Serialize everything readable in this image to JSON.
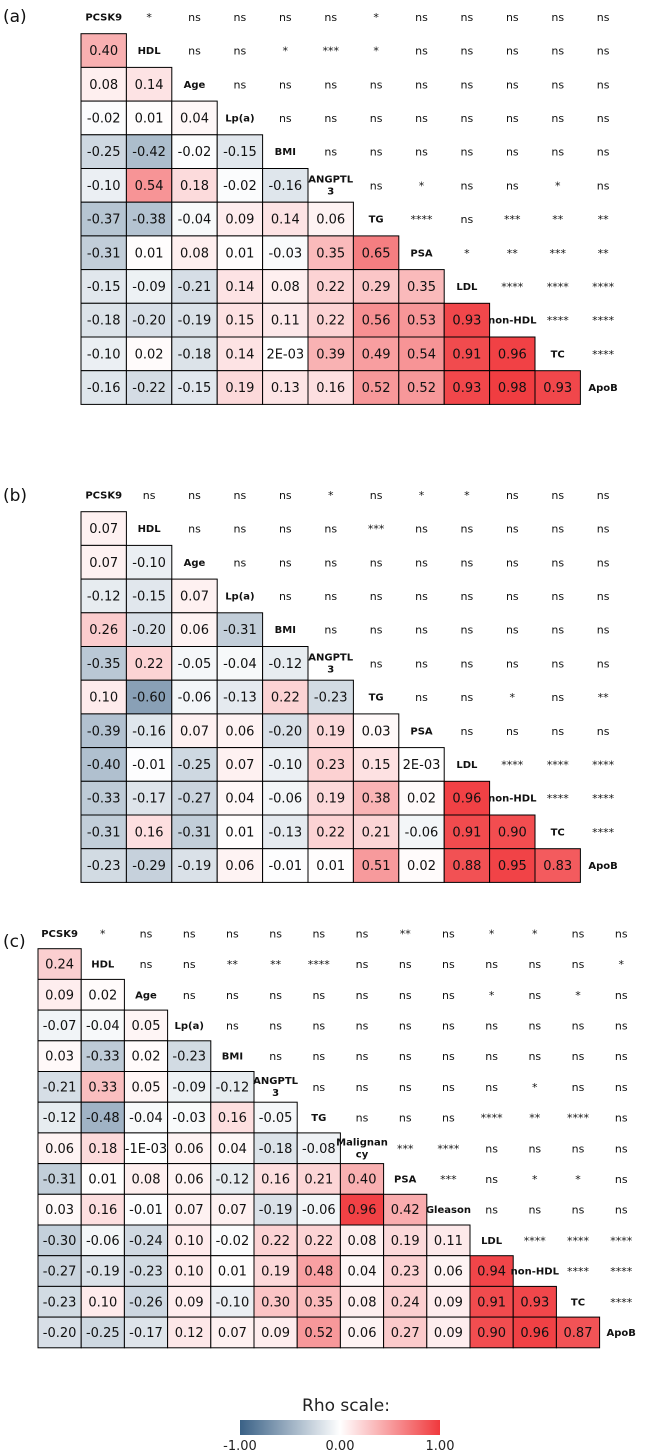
{
  "chart_data": [
    {
      "type": "heatmap",
      "panel_label": "(a)",
      "variables": [
        "PCSK9",
        "HDL",
        "Age",
        "Lp(a)",
        "BMI",
        "ANGPTL 3",
        "TG",
        "PSA",
        "LDL",
        "non-HDL",
        "TC",
        "ApoB"
      ],
      "lower_rho": [
        [],
        [
          "0.40"
        ],
        [
          "0.08",
          "0.14"
        ],
        [
          "-0.02",
          "0.01",
          "0.04"
        ],
        [
          "-0.25",
          "-0.42",
          "-0.02",
          "-0.15"
        ],
        [
          "-0.10",
          "0.54",
          "0.18",
          "-0.02",
          "-0.16"
        ],
        [
          "-0.37",
          "-0.38",
          "-0.04",
          "0.09",
          "0.14",
          "0.06"
        ],
        [
          "-0.31",
          "0.01",
          "0.08",
          "0.01",
          "-0.03",
          "0.35",
          "0.65"
        ],
        [
          "-0.15",
          "-0.09",
          "-0.21",
          "0.14",
          "0.08",
          "0.22",
          "0.29",
          "0.35"
        ],
        [
          "-0.18",
          "-0.20",
          "-0.19",
          "0.15",
          "0.11",
          "0.22",
          "0.56",
          "0.53",
          "0.93"
        ],
        [
          "-0.10",
          "0.02",
          "-0.18",
          "0.14",
          "2E-03",
          "0.39",
          "0.49",
          "0.54",
          "0.91",
          "0.96"
        ],
        [
          "-0.16",
          "-0.22",
          "-0.15",
          "0.19",
          "0.13",
          "0.16",
          "0.52",
          "0.52",
          "0.93",
          "0.98",
          "0.93"
        ]
      ],
      "upper_significance": [
        [
          "*",
          "ns",
          "ns",
          "ns",
          "ns",
          "*",
          "ns",
          "ns",
          "ns",
          "ns",
          "ns"
        ],
        [
          "ns",
          "ns",
          "*",
          "***",
          "*",
          "ns",
          "ns",
          "ns",
          "ns",
          "ns"
        ],
        [
          "ns",
          "ns",
          "ns",
          "ns",
          "ns",
          "ns",
          "ns",
          "ns",
          "ns"
        ],
        [
          "ns",
          "ns",
          "ns",
          "ns",
          "ns",
          "ns",
          "ns",
          "ns"
        ],
        [
          "ns",
          "ns",
          "ns",
          "ns",
          "ns",
          "ns",
          "ns"
        ],
        [
          "ns",
          "*",
          "ns",
          "ns",
          "*",
          "ns"
        ],
        [
          "****",
          "ns",
          "***",
          "**",
          "**"
        ],
        [
          "*",
          "**",
          "***",
          "**"
        ],
        [
          "****",
          "****",
          "****"
        ],
        [
          "****",
          "****"
        ],
        [
          "****"
        ],
        []
      ]
    },
    {
      "type": "heatmap",
      "panel_label": "(b)",
      "variables": [
        "PCSK9",
        "HDL",
        "Age",
        "Lp(a)",
        "BMI",
        "ANGPTL 3",
        "TG",
        "PSA",
        "LDL",
        "non-HDL",
        "TC",
        "ApoB"
      ],
      "lower_rho": [
        [],
        [
          "0.07"
        ],
        [
          "0.07",
          "-0.10"
        ],
        [
          "-0.12",
          "-0.15",
          "0.07"
        ],
        [
          "0.26",
          "-0.20",
          "0.06",
          "-0.31"
        ],
        [
          "-0.35",
          "0.22",
          "-0.05",
          "-0.04",
          "-0.12"
        ],
        [
          "0.10",
          "-0.60",
          "-0.06",
          "-0.13",
          "0.22",
          "-0.23"
        ],
        [
          "-0.39",
          "-0.16",
          "0.07",
          "0.06",
          "-0.20",
          "0.19",
          "0.03"
        ],
        [
          "-0.40",
          "-0.01",
          "-0.25",
          "0.07",
          "-0.10",
          "0.23",
          "0.15",
          "2E-03"
        ],
        [
          "-0.33",
          "-0.17",
          "-0.27",
          "0.04",
          "-0.06",
          "0.19",
          "0.38",
          "0.02",
          "0.96"
        ],
        [
          "-0.31",
          "0.16",
          "-0.31",
          "0.01",
          "-0.13",
          "0.22",
          "0.21",
          "-0.06",
          "0.91",
          "0.90"
        ],
        [
          "-0.23",
          "-0.29",
          "-0.19",
          "0.06",
          "-0.01",
          "0.01",
          "0.51",
          "0.02",
          "0.88",
          "0.95",
          "0.83"
        ]
      ],
      "upper_significance": [
        [
          "ns",
          "ns",
          "ns",
          "ns",
          "*",
          "ns",
          "*",
          "*",
          "ns",
          "ns",
          "ns"
        ],
        [
          "ns",
          "ns",
          "ns",
          "ns",
          "***",
          "ns",
          "ns",
          "ns",
          "ns",
          "ns"
        ],
        [
          "ns",
          "ns",
          "ns",
          "ns",
          "ns",
          "ns",
          "ns",
          "ns",
          "ns"
        ],
        [
          "ns",
          "ns",
          "ns",
          "ns",
          "ns",
          "ns",
          "ns",
          "ns"
        ],
        [
          "ns",
          "ns",
          "ns",
          "ns",
          "ns",
          "ns",
          "ns"
        ],
        [
          "ns",
          "ns",
          "ns",
          "ns",
          "ns",
          "ns"
        ],
        [
          "ns",
          "ns",
          "*",
          "ns",
          "**"
        ],
        [
          "ns",
          "ns",
          "ns",
          "ns"
        ],
        [
          "****",
          "****",
          "****"
        ],
        [
          "****",
          "****"
        ],
        [
          "****"
        ],
        []
      ]
    },
    {
      "type": "heatmap",
      "panel_label": "(c)",
      "variables": [
        "PCSK9",
        "HDL",
        "Age",
        "Lp(a)",
        "BMI",
        "ANGPTL 3",
        "TG",
        "Malignan cy",
        "PSA",
        "Gleason",
        "LDL",
        "non-HDL",
        "TC",
        "ApoB"
      ],
      "lower_rho": [
        [],
        [
          "0.24"
        ],
        [
          "0.09",
          "0.02"
        ],
        [
          "-0.07",
          "-0.04",
          "0.05"
        ],
        [
          "0.03",
          "-0.33",
          "0.02",
          "-0.23"
        ],
        [
          "-0.21",
          "0.33",
          "0.05",
          "-0.09",
          "-0.12"
        ],
        [
          "-0.12",
          "-0.48",
          "-0.04",
          "-0.03",
          "0.16",
          "-0.05"
        ],
        [
          "0.06",
          "0.18",
          "-1E-03",
          "0.06",
          "0.04",
          "-0.18",
          "-0.08"
        ],
        [
          "-0.31",
          "0.01",
          "0.08",
          "0.06",
          "-0.12",
          "0.16",
          "0.21",
          "0.40"
        ],
        [
          "0.03",
          "0.16",
          "-0.01",
          "0.07",
          "0.07",
          "-0.19",
          "-0.06",
          "0.96",
          "0.42"
        ],
        [
          "-0.30",
          "-0.06",
          "-0.24",
          "0.10",
          "-0.02",
          "0.22",
          "0.22",
          "0.08",
          "0.19",
          "0.11"
        ],
        [
          "-0.27",
          "-0.19",
          "-0.23",
          "0.10",
          "0.01",
          "0.19",
          "0.48",
          "0.04",
          "0.23",
          "0.06",
          "0.94"
        ],
        [
          "-0.23",
          "0.10",
          "-0.26",
          "0.09",
          "-0.10",
          "0.30",
          "0.35",
          "0.08",
          "0.24",
          "0.09",
          "0.91",
          "0.93"
        ],
        [
          "-0.20",
          "-0.25",
          "-0.17",
          "0.12",
          "0.07",
          "0.09",
          "0.52",
          "0.06",
          "0.27",
          "0.09",
          "0.90",
          "0.96",
          "0.87"
        ]
      ],
      "upper_significance": [
        [
          "*",
          "ns",
          "ns",
          "ns",
          "ns",
          "ns",
          "ns",
          "**",
          "ns",
          "*",
          "*",
          "ns",
          "ns"
        ],
        [
          "ns",
          "ns",
          "**",
          "**",
          "****",
          "ns",
          "ns",
          "ns",
          "ns",
          "ns",
          "ns",
          "*"
        ],
        [
          "ns",
          "ns",
          "ns",
          "ns",
          "ns",
          "ns",
          "ns",
          "*",
          "ns",
          "*",
          "ns"
        ],
        [
          "ns",
          "ns",
          "ns",
          "ns",
          "ns",
          "ns",
          "ns",
          "ns",
          "ns",
          "ns"
        ],
        [
          "ns",
          "ns",
          "ns",
          "ns",
          "ns",
          "ns",
          "ns",
          "ns",
          "ns"
        ],
        [
          "ns",
          "ns",
          "ns",
          "ns",
          "ns",
          "*",
          "ns",
          "ns"
        ],
        [
          "ns",
          "ns",
          "ns",
          "****",
          "**",
          "****",
          "ns"
        ],
        [
          "***",
          "****",
          "ns",
          "ns",
          "ns",
          "ns"
        ],
        [
          "***",
          "ns",
          "*",
          "*",
          "ns"
        ],
        [
          "ns",
          "ns",
          "ns",
          "ns"
        ],
        [
          "****",
          "****",
          "****"
        ],
        [
          "****",
          "****"
        ],
        [
          "****"
        ],
        []
      ]
    }
  ],
  "legend": {
    "title": "Rho scale:",
    "min_label": "-1.00",
    "mid_label": "0.00",
    "max_label": "1.00",
    "colors": {
      "negative": "#3a6186",
      "zero": "#ffffff",
      "positive": "#f0393d"
    }
  }
}
